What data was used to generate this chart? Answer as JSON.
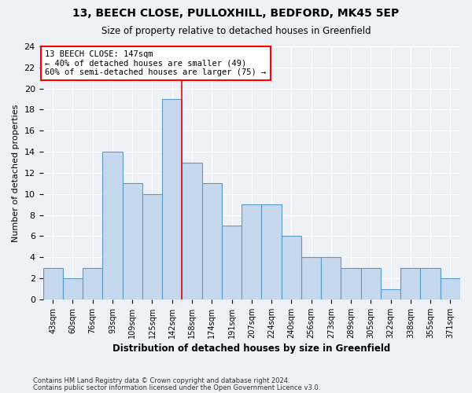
{
  "title_line1": "13, BEECH CLOSE, PULLOXHILL, BEDFORD, MK45 5EP",
  "title_line2": "Size of property relative to detached houses in Greenfield",
  "xlabel": "Distribution of detached houses by size in Greenfield",
  "ylabel": "Number of detached properties",
  "categories": [
    "43sqm",
    "60sqm",
    "76sqm",
    "93sqm",
    "109sqm",
    "125sqm",
    "142sqm",
    "158sqm",
    "174sqm",
    "191sqm",
    "207sqm",
    "224sqm",
    "240sqm",
    "256sqm",
    "273sqm",
    "289sqm",
    "305sqm",
    "322sqm",
    "338sqm",
    "355sqm",
    "371sqm"
  ],
  "values": [
    3,
    2,
    3,
    14,
    11,
    10,
    19,
    13,
    11,
    7,
    9,
    9,
    6,
    4,
    4,
    3,
    3,
    1,
    3,
    3,
    2
  ],
  "bar_color": "#c5d8ed",
  "bar_edge_color": "#5a9ac9",
  "vline_x_index": 6.5,
  "annotation_line1": "13 BEECH CLOSE: 147sqm",
  "annotation_line2": "← 40% of detached houses are smaller (49)",
  "annotation_line3": "60% of semi-detached houses are larger (75) →",
  "vline_color": "red",
  "ylim": [
    0,
    24
  ],
  "yticks": [
    0,
    2,
    4,
    6,
    8,
    10,
    12,
    14,
    16,
    18,
    20,
    22,
    24
  ],
  "footer_line1": "Contains HM Land Registry data © Crown copyright and database right 2024.",
  "footer_line2": "Contains public sector information licensed under the Open Government Licence v3.0.",
  "bg_color": "#eef2f7",
  "plot_bg_color": "#eef2f7",
  "grid_color": "white"
}
